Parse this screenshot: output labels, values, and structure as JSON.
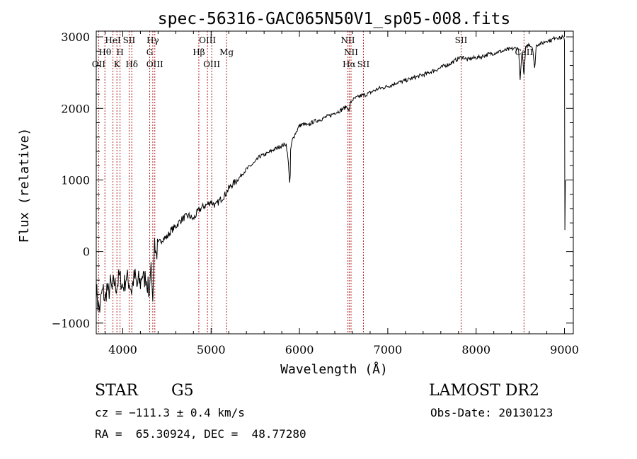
{
  "chart_data": {
    "type": "line",
    "title": "spec-56316-GAC065N50V1_sp05-008.fits",
    "xlabel": "Wavelength (Å)",
    "ylabel": "Flux (relative)",
    "xlim": [
      3700,
      9100
    ],
    "ylim": [
      -1150,
      3080
    ],
    "xticks": [
      4000,
      5000,
      6000,
      7000,
      8000,
      9000
    ],
    "yticks": [
      -1000,
      0,
      1000,
      2000,
      3000
    ],
    "grid": false,
    "legend": "none",
    "series": [
      {
        "color": "#000000",
        "x": [
          3700,
          3720,
          3740,
          3760,
          3780,
          3800,
          3820,
          3840,
          3860,
          3880,
          3900,
          3920,
          3940,
          3960,
          3980,
          4000,
          4020,
          4040,
          4060,
          4080,
          4100,
          4120,
          4140,
          4160,
          4180,
          4200,
          4220,
          4240,
          4260,
          4280,
          4300,
          4320,
          4340,
          4360,
          4380,
          4400,
          4450,
          4500,
          4550,
          4600,
          4650,
          4700,
          4750,
          4800,
          4850,
          4900,
          4950,
          5000,
          5050,
          5100,
          5150,
          5200,
          5250,
          5300,
          5350,
          5400,
          5450,
          5500,
          5550,
          5600,
          5650,
          5700,
          5750,
          5800,
          5850,
          5870,
          5880,
          5890,
          5896,
          5900,
          5920,
          5950,
          6000,
          6050,
          6100,
          6150,
          6200,
          6250,
          6300,
          6350,
          6400,
          6450,
          6500,
          6540,
          6560,
          6580,
          6600,
          6650,
          6700,
          6750,
          6800,
          6850,
          6900,
          6950,
          7000,
          7050,
          7100,
          7150,
          7200,
          7250,
          7300,
          7350,
          7400,
          7450,
          7500,
          7550,
          7600,
          7650,
          7700,
          7750,
          7800,
          7850,
          7900,
          7950,
          8000,
          8050,
          8100,
          8150,
          8200,
          8250,
          8300,
          8350,
          8400,
          8450,
          8480,
          8498,
          8520,
          8542,
          8560,
          8600,
          8640,
          8662,
          8680,
          8700,
          8750,
          8800,
          8850,
          8900,
          8950,
          8980,
          9000,
          9005,
          9010
        ],
        "values": [
          -500,
          -750,
          -800,
          -600,
          -550,
          -700,
          -500,
          -600,
          -450,
          -550,
          -400,
          -500,
          -450,
          -350,
          -400,
          -500,
          -450,
          -350,
          -400,
          -450,
          -550,
          -400,
          -350,
          -500,
          -400,
          -450,
          -300,
          -400,
          -350,
          -450,
          -600,
          -150,
          -700,
          150,
          -50,
          100,
          180,
          200,
          300,
          350,
          430,
          480,
          500,
          450,
          560,
          620,
          650,
          700,
          640,
          720,
          780,
          880,
          950,
          1000,
          1080,
          1150,
          1200,
          1250,
          1330,
          1350,
          1380,
          1420,
          1450,
          1480,
          1500,
          1300,
          1150,
          950,
          1050,
          1420,
          1560,
          1640,
          1760,
          1780,
          1760,
          1810,
          1830,
          1850,
          1880,
          1900,
          1940,
          1960,
          2000,
          2030,
          1950,
          2080,
          2120,
          2150,
          2180,
          2190,
          2220,
          2250,
          2280,
          2290,
          2310,
          2330,
          2360,
          2370,
          2390,
          2410,
          2430,
          2450,
          2470,
          2490,
          2520,
          2540,
          2570,
          2600,
          2620,
          2660,
          2700,
          2720,
          2680,
          2700,
          2710,
          2720,
          2740,
          2760,
          2770,
          2790,
          2800,
          2820,
          2830,
          2840,
          2830,
          2400,
          2810,
          2450,
          2840,
          2900,
          2850,
          2550,
          2870,
          2900,
          2910,
          2950,
          2950,
          3000,
          2980,
          3000,
          2950,
          300,
          1000
        ]
      }
    ],
    "line_markers": [
      {
        "label": "OII",
        "x": 3727,
        "row": 3
      },
      {
        "label": "Hθ",
        "x": 3798,
        "row": 2
      },
      {
        "label": "HeI",
        "x": 3889,
        "row": 1
      },
      {
        "label": "K",
        "x": 3934,
        "row": 3
      },
      {
        "label": "H",
        "x": 3969,
        "row": 2
      },
      {
        "label": "SII",
        "x": 4072,
        "row": 1
      },
      {
        "label": "Hδ",
        "x": 4102,
        "row": 3
      },
      {
        "label": "Hγ",
        "x": 4340,
        "row": 1
      },
      {
        "label": "G",
        "x": 4305,
        "row": 2
      },
      {
        "label": "OIII",
        "x": 4363,
        "row": 3
      },
      {
        "label": "Hβ",
        "x": 4861,
        "row": 2
      },
      {
        "label": "OIII",
        "x": 4959,
        "row": 1
      },
      {
        "label": "OIII",
        "x": 5007,
        "row": 3
      },
      {
        "label": "Mg",
        "x": 5175,
        "row": 2
      },
      {
        "label": "NII",
        "x": 6548,
        "row": 1
      },
      {
        "label": "NII",
        "x": 6584,
        "row": 2
      },
      {
        "label": "Hα",
        "x": 6563,
        "row": 3
      },
      {
        "label": "SII",
        "x": 6724,
        "row": 3
      },
      {
        "label": "SII",
        "x": 7830,
        "row": 1
      },
      {
        "label": "CaII",
        "x": 8542,
        "row": 2
      }
    ]
  },
  "info": {
    "object_class": "STAR",
    "subclass": "G5",
    "survey": "LAMOST DR2",
    "redshift": "cz = −111.3 ± 0.4 km/s",
    "obs_date": "Obs-Date: 20130123",
    "coords": "RA =  65.30924, DEC =  48.77280"
  },
  "colors": {
    "spectrum": "#000000",
    "marker_line": "#b22222",
    "axes": "#000000"
  }
}
